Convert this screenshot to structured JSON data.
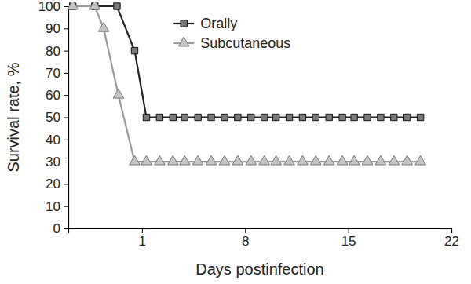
{
  "chart_data": {
    "type": "line",
    "x_label": "Days postinfection",
    "y_label": "Survival rate, %",
    "xlim": [
      -4,
      22
    ],
    "xticks": [
      1,
      8,
      15,
      22
    ],
    "ylim": [
      0,
      100
    ],
    "yticks": [
      0,
      10,
      20,
      30,
      40,
      50,
      60,
      70,
      80,
      90,
      100
    ],
    "grid": false,
    "legend": "top",
    "series": [
      {
        "name": "Orally",
        "color": "#222222",
        "marker": "square",
        "line_style": "solid",
        "x": [
          -3.7,
          -2.2,
          -0.7,
          0.5,
          1.3,
          2.2,
          3.1,
          3.9,
          4.8,
          5.7,
          6.6,
          7.5,
          8.4,
          9.3,
          10.1,
          11.0,
          11.9,
          12.8,
          13.7,
          14.6,
          15.4,
          16.3,
          17.2,
          18.1,
          19.0,
          19.9
        ],
        "values": [
          100,
          100,
          100,
          80,
          50,
          50,
          50,
          50,
          50,
          50,
          50,
          50,
          50,
          50,
          50,
          50,
          50,
          50,
          50,
          50,
          50,
          50,
          50,
          50,
          50,
          50
        ]
      },
      {
        "name": "Subcutaneous",
        "color": "#9a9a9a",
        "marker": "triangle",
        "line_style": "solid",
        "x": [
          -3.7,
          -2.2,
          -1.6,
          -0.6,
          0.5,
          1.3,
          2.2,
          3.1,
          3.9,
          4.8,
          5.7,
          6.6,
          7.5,
          8.4,
          9.3,
          10.1,
          11.0,
          11.9,
          12.8,
          13.7,
          14.6,
          15.4,
          16.3,
          17.2,
          18.1,
          19.0,
          19.9
        ],
        "values": [
          100,
          100,
          90,
          60,
          30,
          30,
          30,
          30,
          30,
          30,
          30,
          30,
          30,
          30,
          30,
          30,
          30,
          30,
          30,
          30,
          30,
          30,
          30,
          30,
          30,
          30,
          30
        ]
      }
    ]
  }
}
